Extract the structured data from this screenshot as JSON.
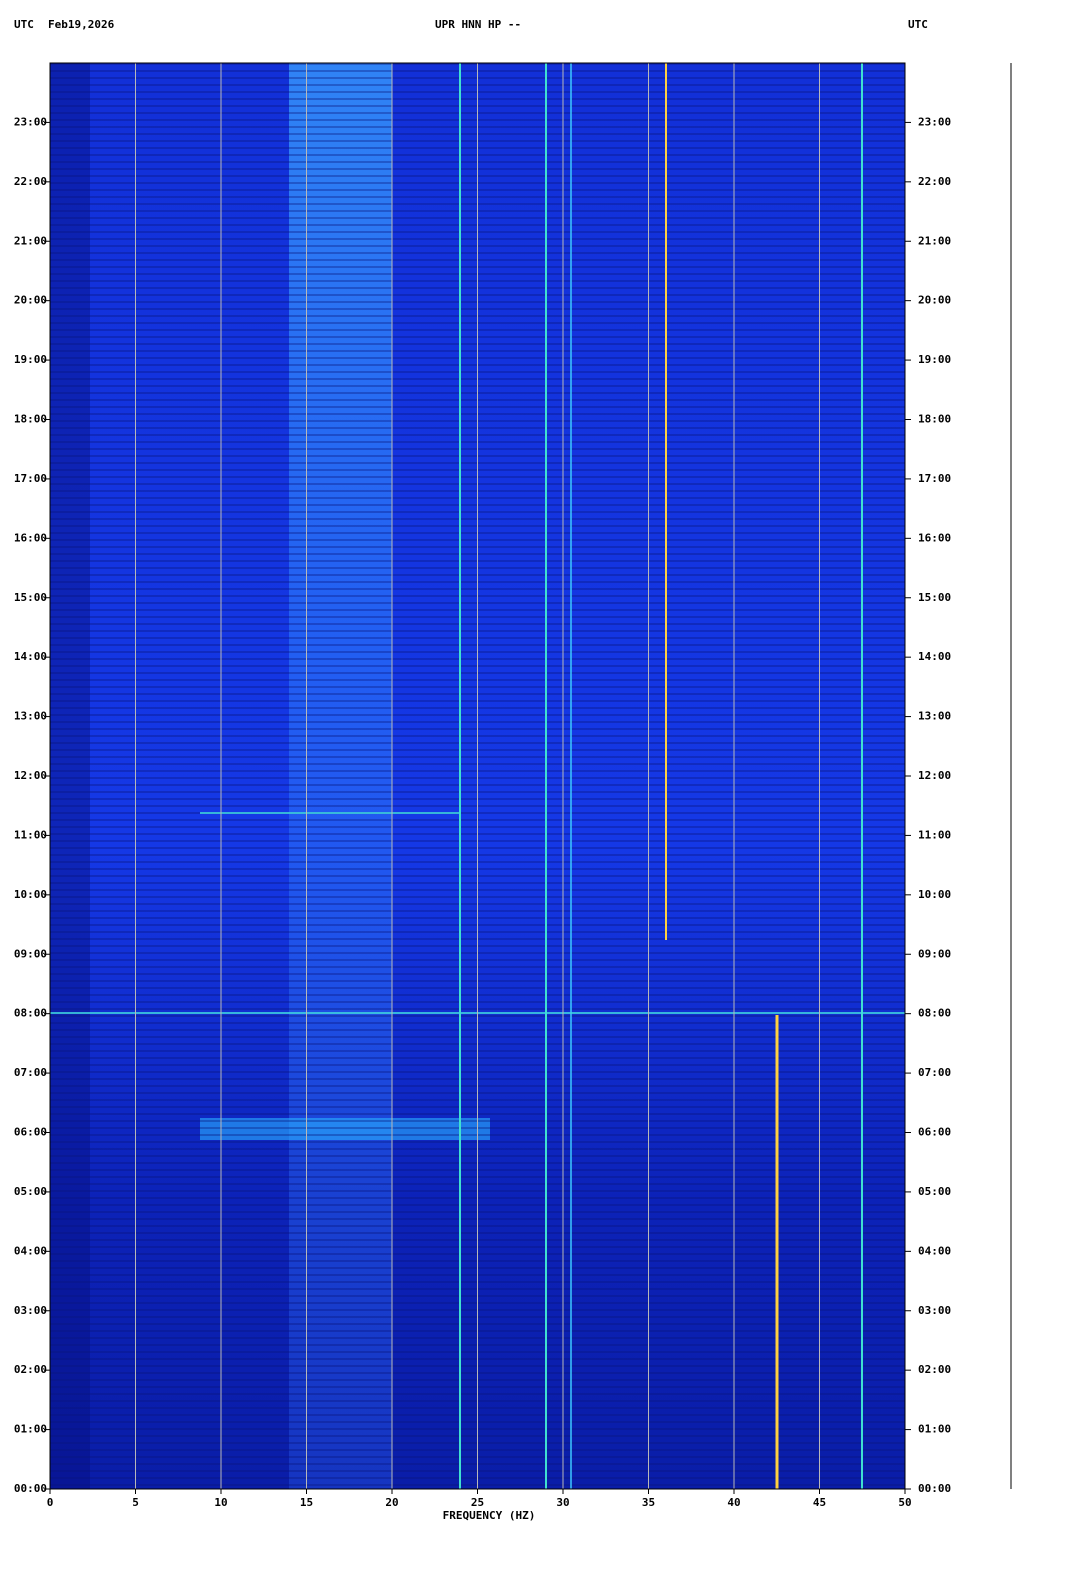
{
  "header": {
    "left_tz": "UTC",
    "date": "Feb19,2026",
    "station": "UPR HNN HP --",
    "right_tz": "UTC"
  },
  "chart_data": {
    "type": "spectrogram",
    "x_label": "FREQUENCY (HZ)",
    "xlim": [
      0,
      50
    ],
    "xticks": [
      0,
      5,
      10,
      15,
      20,
      25,
      30,
      35,
      40,
      45,
      50
    ],
    "ylim": [
      0,
      24
    ],
    "yticks": [
      {
        "value": 0,
        "label": "00:00"
      },
      {
        "value": 1,
        "label": "01:00"
      },
      {
        "value": 2,
        "label": "02:00"
      },
      {
        "value": 3,
        "label": "03:00"
      },
      {
        "value": 4,
        "label": "04:00"
      },
      {
        "value": 5,
        "label": "05:00"
      },
      {
        "value": 6,
        "label": "06:00"
      },
      {
        "value": 7,
        "label": "07:00"
      },
      {
        "value": 8,
        "label": "08:00"
      },
      {
        "value": 9,
        "label": "09:00"
      },
      {
        "value": 10,
        "label": "10:00"
      },
      {
        "value": 11,
        "label": "11:00"
      },
      {
        "value": 12,
        "label": "12:00"
      },
      {
        "value": 13,
        "label": "13:00"
      },
      {
        "value": 14,
        "label": "14:00"
      },
      {
        "value": 15,
        "label": "15:00"
      },
      {
        "value": 16,
        "label": "16:00"
      },
      {
        "value": 17,
        "label": "17:00"
      },
      {
        "value": 18,
        "label": "18:00"
      },
      {
        "value": 19,
        "label": "19:00"
      },
      {
        "value": 20,
        "label": "20:00"
      },
      {
        "value": 21,
        "label": "21:00"
      },
      {
        "value": 22,
        "label": "22:00"
      },
      {
        "value": 23,
        "label": "23:00"
      }
    ],
    "grid": true,
    "grid_color": "#b8b8b8"
  }
}
